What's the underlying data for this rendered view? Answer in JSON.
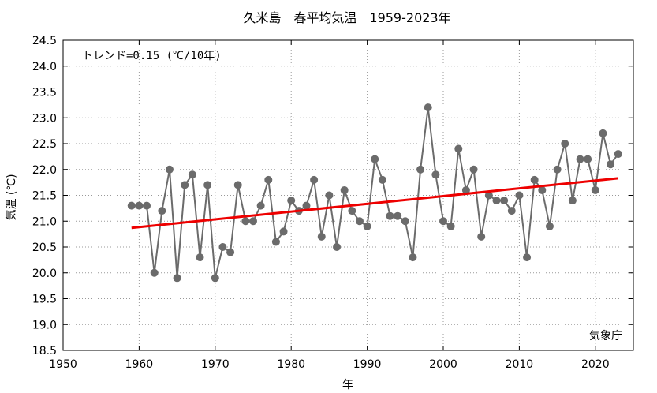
{
  "chart_data": {
    "type": "line",
    "title": "久米島　春平均気温　1959-2023年",
    "xlabel": "年",
    "ylabel": "気温 (℃)",
    "xlim": [
      1950,
      2025
    ],
    "ylim": [
      18.5,
      24.5
    ],
    "x_ticks": [
      "1950",
      "1960",
      "1970",
      "1980",
      "1990",
      "2000",
      "2010",
      "2020"
    ],
    "y_ticks": [
      "18.5",
      "19.0",
      "19.5",
      "20.0",
      "20.5",
      "21.0",
      "21.5",
      "22.0",
      "22.5",
      "23.0",
      "23.5",
      "24.0",
      "24.5"
    ],
    "grid": true,
    "trend_label": "トレンド=0.15 (℃/10年)",
    "source_label": "気象庁",
    "colors": {
      "series": "#6b6b6b",
      "trend": "#ee0000",
      "grid": "#999999"
    },
    "series": [
      {
        "x": [
          1959,
          1960,
          1961,
          1962,
          1963,
          1964,
          1965,
          1966,
          1967,
          1968,
          1969,
          1970,
          1971,
          1972,
          1973,
          1974,
          1975,
          1976,
          1977,
          1978,
          1979,
          1980,
          1981,
          1982,
          1983,
          1984,
          1985,
          1986,
          1987,
          1988,
          1989,
          1990,
          1991,
          1992,
          1993,
          1994,
          1995,
          1996,
          1997,
          1998,
          1999,
          2000,
          2001,
          2002,
          2003,
          2004,
          2005,
          2006,
          2007,
          2008,
          2009,
          2010,
          2011,
          2012,
          2013,
          2014,
          2015,
          2016,
          2017,
          2018,
          2019,
          2020,
          2021,
          2022,
          2023
        ],
        "values": [
          21.3,
          21.3,
          21.3,
          20.0,
          21.2,
          22.0,
          19.9,
          21.7,
          21.9,
          20.3,
          21.7,
          19.9,
          20.5,
          20.4,
          21.7,
          21.0,
          21.0,
          21.3,
          21.8,
          20.6,
          20.8,
          21.4,
          21.2,
          21.3,
          21.8,
          20.7,
          21.5,
          20.5,
          21.6,
          21.2,
          21.0,
          20.9,
          22.2,
          21.8,
          21.1,
          21.1,
          21.0,
          20.3,
          22.0,
          23.2,
          21.9,
          21.0,
          20.9,
          22.4,
          21.6,
          22.0,
          20.7,
          21.5,
          21.4,
          21.4,
          21.2,
          21.5,
          20.3,
          21.8,
          21.6,
          20.9,
          22.0,
          22.5,
          21.4,
          22.2,
          22.2,
          21.6,
          22.7,
          22.1,
          22.3
        ]
      }
    ],
    "trend": {
      "x": [
        1959,
        2023
      ],
      "y": [
        20.87,
        21.83
      ]
    }
  }
}
